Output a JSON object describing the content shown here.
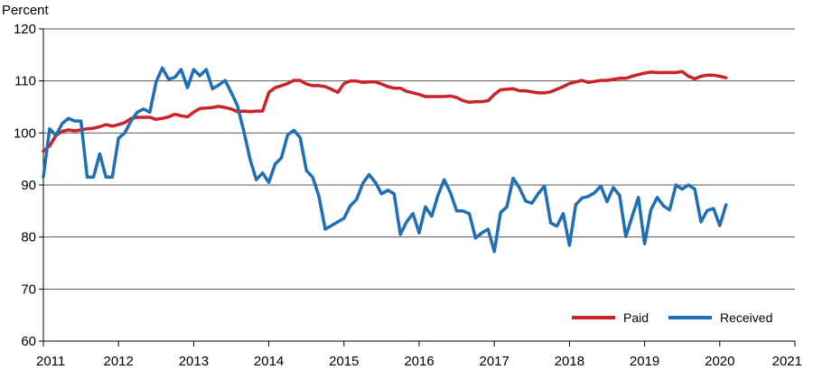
{
  "chart_data": {
    "type": "line",
    "title": "",
    "xlabel": "",
    "ylabel": "Percent",
    "xlim": [
      2011,
      2021
    ],
    "ylim": [
      60,
      120
    ],
    "x_ticks": [
      "2011",
      "2012",
      "2013",
      "2014",
      "2015",
      "2016",
      "2017",
      "2018",
      "2019",
      "2020",
      "2021"
    ],
    "y_ticks": [
      "60",
      "70",
      "80",
      "90",
      "100",
      "110",
      "120"
    ],
    "grid": "horizontal",
    "legend_position": "bottom-right",
    "series": [
      {
        "name": "Paid",
        "color": "#cc2229",
        "x": [
          2011.0,
          2011.083,
          2011.167,
          2011.25,
          2011.333,
          2011.417,
          2011.5,
          2011.583,
          2011.667,
          2011.75,
          2011.833,
          2011.917,
          2012.0,
          2012.083,
          2012.167,
          2012.25,
          2012.333,
          2012.417,
          2012.5,
          2012.583,
          2012.667,
          2012.75,
          2012.833,
          2012.917,
          2013.0,
          2013.083,
          2013.167,
          2013.25,
          2013.333,
          2013.417,
          2013.5,
          2013.583,
          2013.667,
          2013.75,
          2013.833,
          2013.917,
          2014.0,
          2014.083,
          2014.167,
          2014.25,
          2014.333,
          2014.417,
          2014.5,
          2014.583,
          2014.667,
          2014.75,
          2014.833,
          2014.917,
          2015.0,
          2015.083,
          2015.167,
          2015.25,
          2015.333,
          2015.417,
          2015.5,
          2015.583,
          2015.667,
          2015.75,
          2015.833,
          2015.917,
          2016.0,
          2016.083,
          2016.167,
          2016.25,
          2016.333,
          2016.417,
          2016.5,
          2016.583,
          2016.667,
          2016.75,
          2016.833,
          2016.917,
          2017.0,
          2017.083,
          2017.167,
          2017.25,
          2017.333,
          2017.417,
          2017.5,
          2017.583,
          2017.667,
          2017.75,
          2017.833,
          2017.917,
          2018.0,
          2018.083,
          2018.167,
          2018.25,
          2018.333,
          2018.417,
          2018.5,
          2018.583,
          2018.667,
          2018.75,
          2018.833,
          2018.917,
          2019.0,
          2019.083,
          2019.167,
          2019.25,
          2019.333,
          2019.417,
          2019.5,
          2019.583,
          2019.667,
          2019.75,
          2019.833,
          2019.917,
          2020.0,
          2020.083
        ],
        "values": [
          96.5,
          97.5,
          99.5,
          100.3,
          100.6,
          100.4,
          100.6,
          100.8,
          100.9,
          101.2,
          101.6,
          101.3,
          101.6,
          102.0,
          102.8,
          103.0,
          103.0,
          103.0,
          102.6,
          102.8,
          103.1,
          103.6,
          103.3,
          103.1,
          104.0,
          104.7,
          104.8,
          104.9,
          105.1,
          104.9,
          104.6,
          104.1,
          104.2,
          104.1,
          104.2,
          104.2,
          107.8,
          108.7,
          109.1,
          109.5,
          110.1,
          110.1,
          109.4,
          109.1,
          109.1,
          108.9,
          108.4,
          107.8,
          109.5,
          110.0,
          110.0,
          109.7,
          109.8,
          109.8,
          109.4,
          108.9,
          108.6,
          108.6,
          108.0,
          107.7,
          107.4,
          107.0,
          107.0,
          107.0,
          107.0,
          107.1,
          106.8,
          106.2,
          105.9,
          106.0,
          106.0,
          106.2,
          107.4,
          108.3,
          108.4,
          108.5,
          108.1,
          108.1,
          107.9,
          107.7,
          107.7,
          107.9,
          108.4,
          108.9,
          109.5,
          109.8,
          110.1,
          109.7,
          109.9,
          110.1,
          110.1,
          110.3,
          110.5,
          110.5,
          110.9,
          111.2,
          111.5,
          111.7,
          111.6,
          111.6,
          111.6,
          111.6,
          111.8,
          110.9,
          110.4,
          110.9,
          111.1,
          111.1,
          110.9,
          110.6
        ]
      },
      {
        "name": "Received",
        "color": "#1f6fb6",
        "x": [
          2011.0,
          2011.083,
          2011.167,
          2011.25,
          2011.333,
          2011.417,
          2011.5,
          2011.583,
          2011.667,
          2011.75,
          2011.833,
          2011.917,
          2012.0,
          2012.083,
          2012.167,
          2012.25,
          2012.333,
          2012.417,
          2012.5,
          2012.583,
          2012.667,
          2012.75,
          2012.833,
          2012.917,
          2013.0,
          2013.083,
          2013.167,
          2013.25,
          2013.333,
          2013.417,
          2013.5,
          2013.583,
          2013.667,
          2013.75,
          2013.833,
          2013.917,
          2014.0,
          2014.083,
          2014.167,
          2014.25,
          2014.333,
          2014.417,
          2014.5,
          2014.583,
          2014.667,
          2014.75,
          2014.833,
          2014.917,
          2015.0,
          2015.083,
          2015.167,
          2015.25,
          2015.333,
          2015.417,
          2015.5,
          2015.583,
          2015.667,
          2015.75,
          2015.833,
          2015.917,
          2016.0,
          2016.083,
          2016.167,
          2016.25,
          2016.333,
          2016.417,
          2016.5,
          2016.583,
          2016.667,
          2016.75,
          2016.833,
          2016.917,
          2017.0,
          2017.083,
          2017.167,
          2017.25,
          2017.333,
          2017.417,
          2017.5,
          2017.583,
          2017.667,
          2017.75,
          2017.833,
          2017.917,
          2018.0,
          2018.083,
          2018.167,
          2018.25,
          2018.333,
          2018.417,
          2018.5,
          2018.583,
          2018.667,
          2018.75,
          2018.833,
          2018.917,
          2019.0,
          2019.083,
          2019.167,
          2019.25,
          2019.333,
          2019.417,
          2019.5,
          2019.583,
          2019.667,
          2019.75,
          2019.833,
          2019.917,
          2020.0,
          2020.083
        ],
        "values": [
          91.5,
          100.8,
          99.5,
          101.8,
          102.8,
          102.3,
          102.3,
          91.5,
          91.5,
          96.0,
          91.5,
          91.5,
          99.0,
          100.0,
          102.3,
          104.0,
          104.6,
          104.0,
          109.8,
          112.5,
          110.3,
          110.7,
          112.2,
          108.7,
          112.2,
          111.0,
          112.2,
          108.5,
          109.2,
          110.1,
          107.8,
          105.2,
          100.3,
          95.0,
          91.0,
          92.3,
          90.5,
          94.0,
          95.2,
          99.6,
          100.5,
          99.1,
          92.8,
          91.5,
          87.8,
          81.5,
          82.2,
          82.9,
          83.6,
          86.0,
          87.2,
          90.3,
          92.0,
          90.5,
          88.3,
          89.0,
          88.3,
          80.5,
          82.9,
          84.5,
          80.8,
          85.8,
          84.0,
          88.0,
          91.0,
          88.5,
          85.0,
          85.0,
          84.5,
          79.8,
          80.8,
          81.5,
          77.2,
          84.7,
          85.8,
          91.3,
          89.5,
          86.9,
          86.5,
          88.3,
          89.8,
          82.7,
          82.1,
          84.5,
          78.4,
          86.2,
          87.5,
          87.8,
          88.5,
          89.8,
          86.8,
          89.5,
          88.0,
          80.1,
          83.9,
          87.6,
          78.7,
          85.2,
          87.6,
          86.0,
          85.2,
          90.0,
          89.2,
          90.0,
          89.2,
          82.9,
          85.1,
          85.5,
          82.2,
          86.2
        ]
      }
    ]
  }
}
